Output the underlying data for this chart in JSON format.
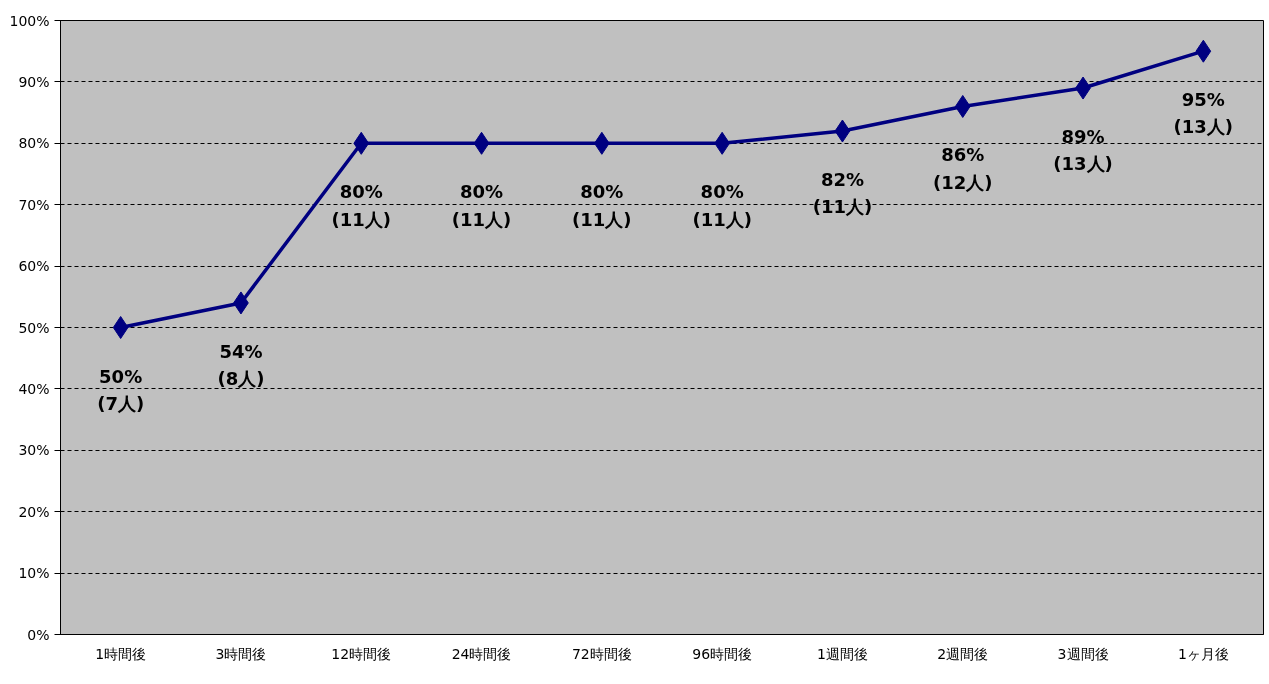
{
  "chart_data": {
    "type": "line",
    "categories": [
      "1時間後",
      "3時間後",
      "12時間後",
      "24時間後",
      "72時間後",
      "96時間後",
      "1週間後",
      "2週間後",
      "3週間後",
      "1ヶ月後"
    ],
    "series": [
      {
        "color": "#000080",
        "values": [
          50,
          54,
          80,
          80,
          80,
          80,
          82,
          86,
          89,
          95
        ],
        "value_labels": [
          "50%\n(7人)",
          "54%\n(8人)",
          "80%\n(11人)",
          "80%\n(11人)",
          "80%\n(11人)",
          "80%\n(11人)",
          "82%\n(11人)",
          "86%\n(12人)",
          "89%\n(13人)",
          "95%\n(13人)"
        ]
      }
    ],
    "ylim": [
      0,
      100
    ],
    "yticks": [
      {
        "value": 0,
        "label": "0%"
      },
      {
        "value": 10,
        "label": "10%"
      },
      {
        "value": 20,
        "label": "20%"
      },
      {
        "value": 30,
        "label": "30%"
      },
      {
        "value": 40,
        "label": "40%"
      },
      {
        "value": 50,
        "label": "50%"
      },
      {
        "value": 60,
        "label": "60%"
      },
      {
        "value": 70,
        "label": "70%"
      },
      {
        "value": 80,
        "label": "80%"
      },
      {
        "value": 90,
        "label": "90%"
      },
      {
        "value": 100,
        "label": "100%"
      }
    ],
    "grid": "y",
    "marker": "diamond",
    "line_style": "solid"
  }
}
